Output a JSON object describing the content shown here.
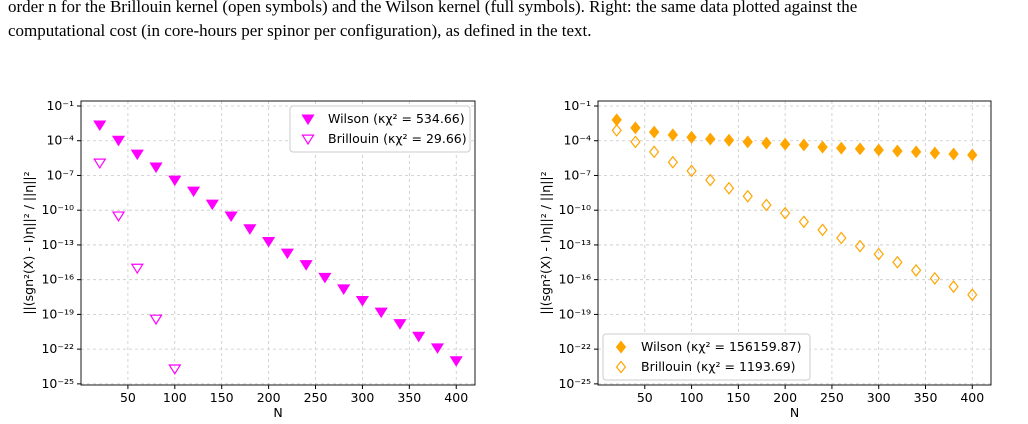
{
  "caption": [
    "order n for the Brillouin kernel (open symbols) and the Wilson kernel (full symbols). Right: the same data plotted against the",
    "computational cost (in core-hours per spinor per configuration), as defined in the text."
  ],
  "chart_data": [
    {
      "type": "scatter",
      "xlabel": "N",
      "ylabel": "||(sgn²(X) - I)η||² / ||η||²",
      "log_y": true,
      "grid": true,
      "legend": "upper right",
      "xlim": [
        0,
        420
      ],
      "ylim": [
        8e-26,
        0.27
      ],
      "xticks": [
        50,
        100,
        150,
        200,
        250,
        300,
        350,
        400
      ],
      "yticks": [
        {
          "value": 0.1,
          "label": "10⁻¹"
        },
        {
          "value": 0.0001,
          "label": "10⁻⁴"
        },
        {
          "value": 1e-07,
          "label": "10⁻⁷"
        },
        {
          "value": 1e-10,
          "label": "10⁻¹⁰"
        },
        {
          "value": 1e-13,
          "label": "10⁻¹³"
        },
        {
          "value": 1e-16,
          "label": "10⁻¹⁶"
        },
        {
          "value": 1e-19,
          "label": "10⁻¹⁹"
        },
        {
          "value": 1e-22,
          "label": "10⁻²²"
        },
        {
          "value": 1e-25,
          "label": "10⁻²⁵"
        }
      ],
      "series": [
        {
          "name": "Wilson (κχ² = 534.66)",
          "color": "#ff00ff",
          "marker": "triangle-down",
          "filled": true,
          "x": [
            20,
            40,
            60,
            80,
            100,
            120,
            140,
            160,
            180,
            200,
            220,
            240,
            260,
            280,
            300,
            320,
            340,
            360,
            380,
            400
          ],
          "values": [
            0.0023,
            0.00011,
            7.1e-06,
            5.4e-07,
            4e-08,
            4.5e-09,
            3.4e-10,
            3.2e-11,
            2.5e-12,
            2e-13,
            2e-14,
            2e-15,
            1.6e-16,
            1.6e-17,
            1.6e-18,
            1.6e-19,
            1.6e-20,
            1.3e-21,
            1.3e-22,
            1e-23
          ]
        },
        {
          "name": "Brillouin (κχ² = 29.66)",
          "color": "#ff00ff",
          "marker": "triangle-down",
          "filled": false,
          "x": [
            20,
            40,
            60,
            80,
            100
          ],
          "values": [
            1.2e-06,
            3.2e-11,
            1e-15,
            4e-20,
            2e-24
          ]
        }
      ]
    },
    {
      "type": "scatter",
      "xlabel": "N",
      "ylabel": "||(sgn²(X) - I)η||² / ||η||²",
      "log_y": true,
      "grid": true,
      "legend": "lower left",
      "xlim": [
        0,
        420
      ],
      "ylim": [
        8e-26,
        0.27
      ],
      "xticks": [
        50,
        100,
        150,
        200,
        250,
        300,
        350,
        400
      ],
      "yticks": [
        {
          "value": 0.1,
          "label": "10⁻¹"
        },
        {
          "value": 0.0001,
          "label": "10⁻⁴"
        },
        {
          "value": 1e-07,
          "label": "10⁻⁷"
        },
        {
          "value": 1e-10,
          "label": "10⁻¹⁰"
        },
        {
          "value": 1e-13,
          "label": "10⁻¹³"
        },
        {
          "value": 1e-16,
          "label": "10⁻¹⁶"
        },
        {
          "value": 1e-19,
          "label": "10⁻¹⁹"
        },
        {
          "value": 1e-22,
          "label": "10⁻²²"
        },
        {
          "value": 1e-25,
          "label": "10⁻²⁵"
        }
      ],
      "series": [
        {
          "name": "Wilson (κχ² = 156159.87)",
          "color": "#ffa500",
          "marker": "diamond",
          "filled": true,
          "x": [
            20,
            40,
            60,
            80,
            100,
            120,
            140,
            160,
            180,
            200,
            220,
            240,
            260,
            280,
            300,
            320,
            340,
            360,
            380,
            400
          ],
          "values": [
            0.0063,
            0.0013,
            0.00056,
            0.00032,
            0.0002,
            0.00014,
            0.00011,
            7.9e-05,
            6.3e-05,
            5e-05,
            4.3e-05,
            2.8e-05,
            2.3e-05,
            2e-05,
            1.6e-05,
            1.3e-05,
            1.1e-05,
            8.7e-06,
            7.1e-06,
            5.9e-06
          ]
        },
        {
          "name": "Brillouin (κχ² = 1193.69)",
          "color": "#ffa500",
          "marker": "diamond",
          "filled": false,
          "x": [
            20,
            40,
            60,
            80,
            100,
            120,
            140,
            160,
            180,
            200,
            220,
            240,
            260,
            280,
            300,
            320,
            340,
            360,
            380,
            400
          ],
          "values": [
            0.00079,
            7.9e-05,
            1.1e-05,
            1.4e-06,
            2.5e-07,
            4e-08,
            7.9e-09,
            1.6e-09,
            2.8e-10,
            5.6e-11,
            1e-11,
            2e-12,
            4e-13,
            7.9e-14,
            1.6e-14,
            3.2e-15,
            6.3e-16,
            1.3e-16,
            2.5e-17,
            5e-18
          ]
        }
      ]
    }
  ]
}
